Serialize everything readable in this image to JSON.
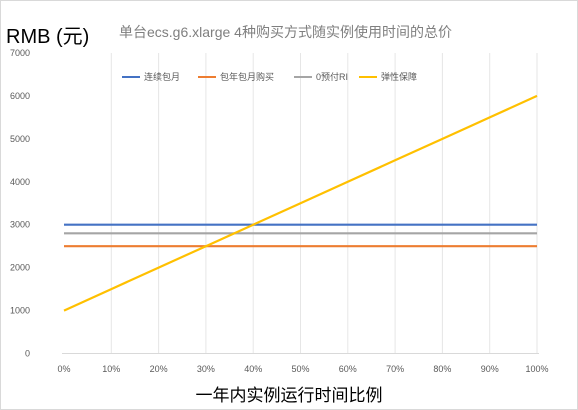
{
  "chart_data": {
    "type": "line",
    "title": "单台ecs.g6.xlarge  4种购买方式随实例使用时间的总价",
    "ylabel": "RMB (元)",
    "xlabel": "一年内实例运行时间比例",
    "categories": [
      "0%",
      "10%",
      "20%",
      "30%",
      "40%",
      "50%",
      "60%",
      "70%",
      "80%",
      "90%",
      "100%"
    ],
    "ylim": [
      0,
      7000
    ],
    "yticks": [
      0,
      1000,
      2000,
      3000,
      4000,
      5000,
      6000,
      7000
    ],
    "grid": "vertical",
    "legend_position": "top",
    "series": [
      {
        "name": "连续包月",
        "color": "#4472c4",
        "values": [
          3000,
          3000,
          3000,
          3000,
          3000,
          3000,
          3000,
          3000,
          3000,
          3000,
          3000
        ]
      },
      {
        "name": "包年包月购买",
        "color": "#ed7d31",
        "values": [
          2500,
          2500,
          2500,
          2500,
          2500,
          2500,
          2500,
          2500,
          2500,
          2500,
          2500
        ]
      },
      {
        "name": "0预付RI",
        "color": "#a5a5a5",
        "values": [
          2800,
          2800,
          2800,
          2800,
          2800,
          2800,
          2800,
          2800,
          2800,
          2800,
          2800
        ]
      },
      {
        "name": "弹性保障",
        "color": "#ffc000",
        "values": [
          1000,
          1500,
          2000,
          2500,
          3000,
          3500,
          4000,
          4500,
          5000,
          5500,
          6000
        ]
      }
    ]
  }
}
